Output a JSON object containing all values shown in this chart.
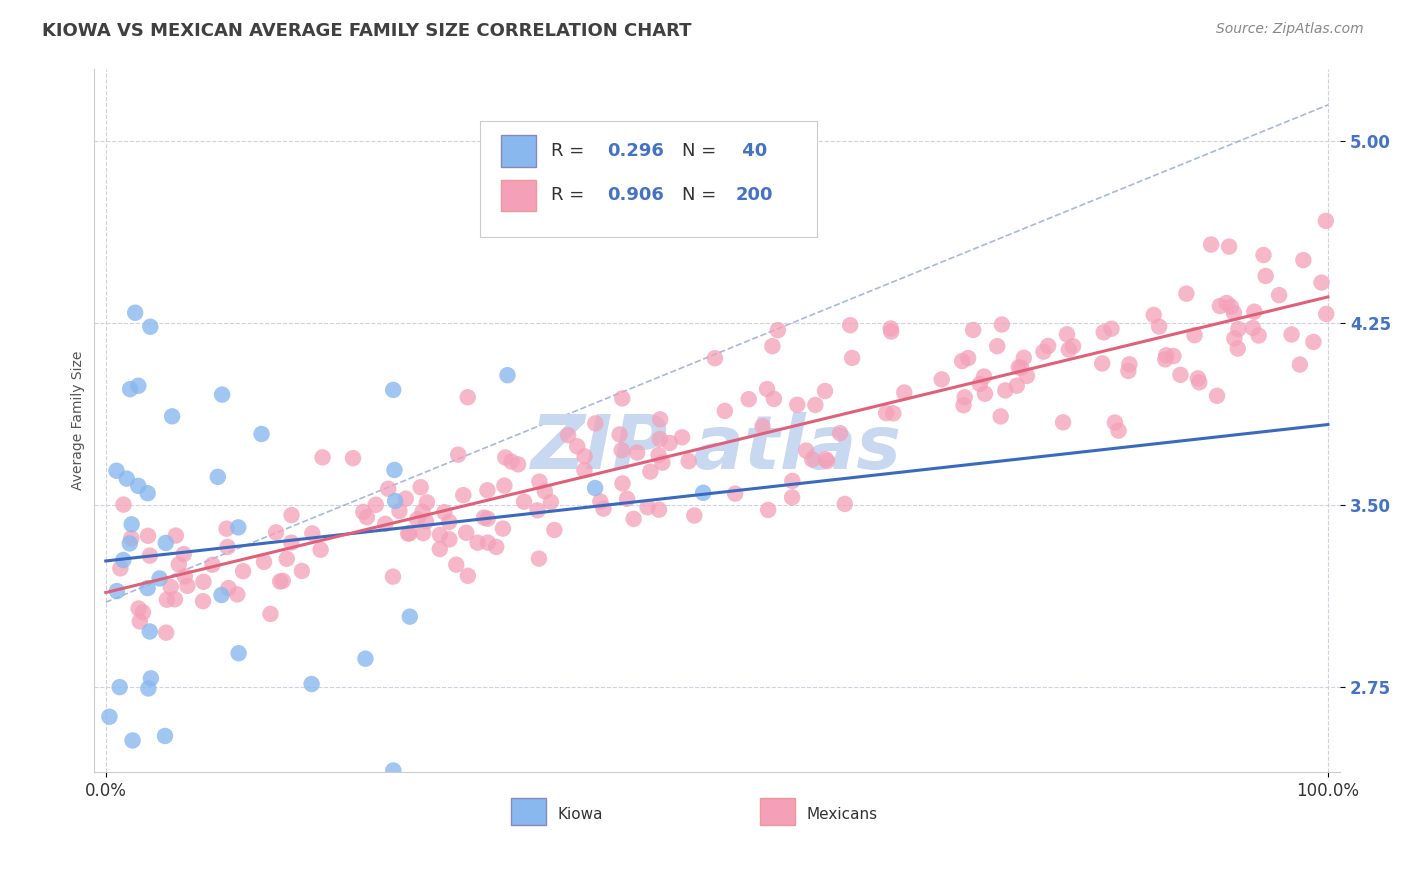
{
  "title": "KIOWA VS MEXICAN AVERAGE FAMILY SIZE CORRELATION CHART",
  "source_text": "Source: ZipAtlas.com",
  "ylabel": "Average Family Size",
  "x_min": 0.0,
  "x_max": 1.0,
  "y_min": 2.4,
  "y_max": 5.3,
  "yticks": [
    2.75,
    3.5,
    4.25,
    5.0
  ],
  "xtick_labels": [
    "0.0%",
    "100.0%"
  ],
  "kiowa_R": 0.296,
  "kiowa_N": 40,
  "mexican_R": 0.906,
  "mexican_N": 200,
  "kiowa_color": "#89b8ee",
  "mexican_color": "#f4a0b8",
  "kiowa_line_color": "#3a6abf",
  "mexican_line_color": "#e0607a",
  "ref_line_color": "#99aadd",
  "title_color": "#404040",
  "axis_label_color": "#4472c4",
  "background_color": "#ffffff",
  "grid_color": "#ccccdd",
  "watermark_color": "#c8d8f0",
  "title_fontsize": 13,
  "axis_label_fontsize": 10,
  "tick_fontsize": 12,
  "source_fontsize": 10,
  "legend_fontsize": 13
}
